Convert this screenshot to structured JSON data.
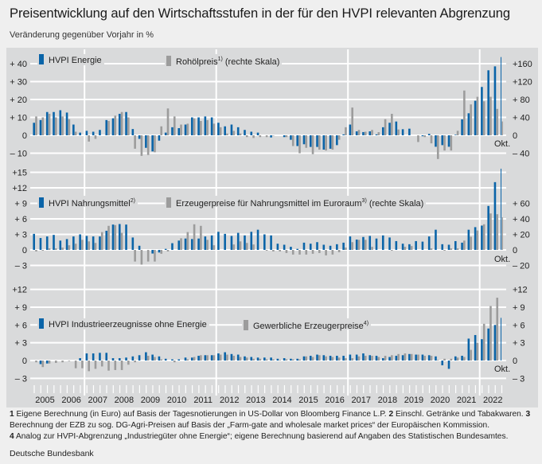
{
  "title": "Preisentwicklung auf den Wirtschaftsstufen in der für den HVPI relevanten Abgrenzung",
  "subtitle": "Veränderung gegenüber Vorjahr in %",
  "colors": {
    "blue_series": "#0a64a8",
    "gray_series": "#9c9c9c",
    "plot_background": "#d9dadb",
    "gridlines": "#ffffff"
  },
  "chart_data": [
    {
      "type": "bar",
      "frequency": "quarterly",
      "x_tick_labels": [
        "2005",
        "2006",
        "2007",
        "2008",
        "2009",
        "2010",
        "2011",
        "2012",
        "2013",
        "2014",
        "2015",
        "2016",
        "2017",
        "2018",
        "2019",
        "2020",
        "2021",
        "2022"
      ],
      "last_point_label": "Okt.",
      "grid": true,
      "y_left": {
        "ticks": [
          40,
          30,
          20,
          10,
          0,
          -10
        ],
        "labels": [
          "+ 40",
          "+ 30",
          "+ 20",
          "+ 10",
          "0",
          "– 10"
        ]
      },
      "y_right": {
        "ticks": [
          160,
          120,
          80,
          40,
          0,
          -40
        ],
        "labels": [
          "+160",
          "+120",
          "+ 80",
          "+ 40",
          "0",
          "– 40"
        ]
      },
      "series": [
        {
          "name": "HVPI Energie",
          "axis": "left",
          "color": "#0a64a8",
          "values": [
            7,
            8.5,
            13,
            13,
            14,
            12.7,
            6,
            1.5,
            2.5,
            2,
            3,
            8.5,
            9.5,
            12,
            13,
            3.5,
            -2,
            -7,
            -9,
            -3,
            1.5,
            4.5,
            4,
            6,
            10,
            10,
            10.5,
            10,
            7,
            5,
            6,
            4.5,
            3,
            2,
            1.5,
            0,
            -1.2,
            0,
            -1,
            -2.5,
            -6,
            -5,
            -6.5,
            -6.5,
            -8,
            -7.5,
            -5.5,
            0.5,
            6,
            2.2,
            1.8,
            2.2,
            0.5,
            4.5,
            7,
            7.7,
            3.4,
            3.7,
            0,
            -0.5,
            0.8,
            -6.4,
            -5.5,
            -6.4,
            0.3,
            8.9,
            12.3,
            19.3,
            27,
            36.3,
            38.5
          ],
          "oct": 43.7
        },
        {
          "name": "Rohölpreis",
          "footnote": "1)",
          "suffix": "(rechte Skala)",
          "axis": "right",
          "color": "#9c9c9c",
          "values": [
            42,
            40,
            48,
            40,
            42,
            36,
            8,
            0,
            -14,
            -8,
            0,
            32,
            44,
            52,
            40,
            -30,
            -46,
            -44,
            -38,
            20,
            60,
            42,
            24,
            26,
            38,
            32,
            34,
            26,
            18,
            4,
            10,
            4,
            -4,
            -6,
            -4,
            -4,
            -1,
            0,
            -4,
            -24,
            -40,
            -28,
            -42,
            -32,
            -34,
            -32,
            -10,
            18,
            62,
            12,
            8,
            12,
            7,
            36,
            48,
            13,
            0,
            0,
            -15,
            -4,
            -18,
            -53,
            -34,
            -34,
            10,
            100,
            69,
            86,
            76,
            86,
            59
          ],
          "oct": 31
        }
      ]
    },
    {
      "type": "bar",
      "frequency": "quarterly",
      "last_point_label": "Okt.",
      "grid": true,
      "y_left": {
        "ticks": [
          15,
          12,
          9,
          6,
          3,
          0,
          -3
        ],
        "labels": [
          "+15",
          "+12",
          "+ 9",
          "+ 6",
          "+ 3",
          "0",
          "– 3"
        ]
      },
      "y_right": {
        "ticks": [
          60,
          40,
          20,
          0,
          -20
        ],
        "labels": [
          "+ 60",
          "+ 40",
          "+ 20",
          "0",
          "– 20"
        ]
      },
      "series": [
        {
          "name": "HVPI Nahrungsmittel",
          "footnote": "2)",
          "axis": "left",
          "color": "#0a64a8",
          "values": [
            3.1,
            2.3,
            2.6,
            2.9,
            1.8,
            2.1,
            2.6,
            3.0,
            2.7,
            2.6,
            2.6,
            3.7,
            4.9,
            5.0,
            4.9,
            2.4,
            0.8,
            0,
            -0.7,
            -0.5,
            0.2,
            1.3,
            1.8,
            2.2,
            2.1,
            2.2,
            2.6,
            2.8,
            3.5,
            3.1,
            2.7,
            3.3,
            2.8,
            3.5,
            3.9,
            3.0,
            2.8,
            1.2,
            1.0,
            0.6,
            0.2,
            1.4,
            1.2,
            1.5,
            1.0,
            0.8,
            1.1,
            1.4,
            2.6,
            2.0,
            2.5,
            2.7,
            2.2,
            2.8,
            2.4,
            1.7,
            1.2,
            1.1,
            1.7,
            1.6,
            2.6,
            3.9,
            1.1,
            1.0,
            1.7,
            1.4,
            3.9,
            4.4,
            4.7,
            8.5,
            13.1
          ],
          "oct": 15.7
        },
        {
          "name": "Erzeugerpreise für Nahrungsmittel im Euroraum",
          "footnote": "3)",
          "suffix": "(rechte Skala)",
          "axis": "right",
          "color": "#9c9c9c",
          "values": [
            -2,
            -1,
            2,
            2,
            3,
            6,
            8,
            13,
            11,
            9,
            23,
            31,
            32,
            22,
            0,
            -15,
            -19,
            -15,
            -15,
            -5,
            -2,
            0,
            15,
            23,
            33,
            31,
            13,
            6,
            0,
            0,
            7,
            11,
            9,
            7,
            0,
            -1,
            -2,
            -2,
            -4,
            -6,
            -6,
            -6,
            -5,
            -4,
            -7,
            -6,
            -3,
            3,
            10,
            13,
            13,
            4,
            0,
            0,
            -1,
            0,
            4,
            5,
            0,
            0,
            2,
            0,
            -1,
            2,
            2,
            12,
            17,
            25,
            33,
            47,
            46
          ],
          "oct": 42
        }
      ]
    },
    {
      "type": "bar",
      "frequency": "quarterly",
      "last_point_label": "Okt.",
      "grid": true,
      "y_left": {
        "ticks": [
          12,
          9,
          6,
          3,
          0,
          -3
        ],
        "labels": [
          "+12",
          "+ 9",
          "+ 6",
          "+ 3",
          "0",
          "– 3"
        ]
      },
      "y_right": {
        "ticks": [
          12,
          9,
          6,
          3,
          0,
          -3
        ],
        "labels": [
          "+12",
          "+ 9",
          "+ 6",
          "+ 3",
          "0",
          "– 3"
        ]
      },
      "series": [
        {
          "name": "HVPI Industrieerzeugnisse ohne Energie",
          "axis": "left",
          "color": "#0a64a8",
          "values": [
            0,
            -0.6,
            -0.5,
            0,
            0,
            0,
            0,
            0.4,
            1.2,
            1.2,
            1.3,
            1.3,
            0.4,
            0.4,
            0.5,
            0.7,
            0.9,
            1.4,
            1.0,
            0.7,
            0.3,
            0.2,
            0.2,
            0.5,
            0.5,
            0.8,
            0.9,
            0.9,
            1.2,
            1.4,
            1.1,
            1.0,
            0.7,
            0.6,
            0.5,
            0.5,
            0.5,
            0.3,
            0.4,
            0.3,
            0.3,
            0.7,
            0.8,
            1.0,
            0.9,
            0.8,
            0.8,
            0.8,
            1.0,
            1.0,
            1.2,
            0.9,
            0.8,
            0.4,
            0.6,
            0.8,
            0.9,
            1.1,
            1.0,
            1.0,
            0.9,
            0.7,
            -0.8,
            -1.4,
            0.7,
            0.8,
            3.7,
            4.3,
            3.6,
            5.4,
            6.0
          ],
          "oct": 7.2
        },
        {
          "name": "Gewerbliche Erzeugerpreise",
          "footnote": "4)",
          "axis": "right",
          "color": "#9c9c9c",
          "values": [
            -0.3,
            -1.1,
            -0.5,
            -0.4,
            -0.3,
            -0.1,
            -1.3,
            -1.3,
            -1.8,
            -1.4,
            -1.0,
            -1.7,
            -1.6,
            -1.6,
            -0.7,
            -0.3,
            0,
            0.8,
            0.6,
            0.2,
            0,
            -0.3,
            0,
            0.2,
            0.6,
            0.9,
            0.9,
            0.9,
            1.0,
            1.0,
            0.8,
            0.6,
            0.5,
            0.3,
            0.3,
            0.2,
            0.2,
            0.1,
            0.2,
            0.2,
            0.2,
            0.7,
            0.6,
            0.9,
            0.7,
            0.6,
            0.5,
            0.4,
            0.4,
            0.7,
            0.8,
            0.8,
            0.6,
            0.8,
            0.9,
            1.1,
            1.2,
            1.1,
            1.0,
            0.8,
            0.8,
            0.1,
            0.3,
            0.3,
            0.5,
            0.6,
            1.8,
            3.0,
            6.2,
            9.2,
            10.6
          ],
          "oct": null
        }
      ]
    }
  ],
  "footnotes": [
    {
      "num": "1",
      "text": "Eigene Berechnung (in Euro) auf Basis der Tagesnotierungen in US-Dollar von Bloomberg Finance L.P."
    },
    {
      "num": "2",
      "text": "Einschl. Getränke und Tabakwaren."
    },
    {
      "num": "3",
      "text": "Berechnung der EZB zu sog. DG-Agri-Preisen auf Basis der „Farm-gate and wholesale market prices“ der Europäischen Kommission."
    },
    {
      "num": "4",
      "text": "Analog zur HVPI-Abgrenzung „Industriegüter ohne Energie“; eigene Berechnung basierend auf Angaben des Statistischen Bundesamtes."
    }
  ],
  "source": "Deutsche Bundesbank"
}
